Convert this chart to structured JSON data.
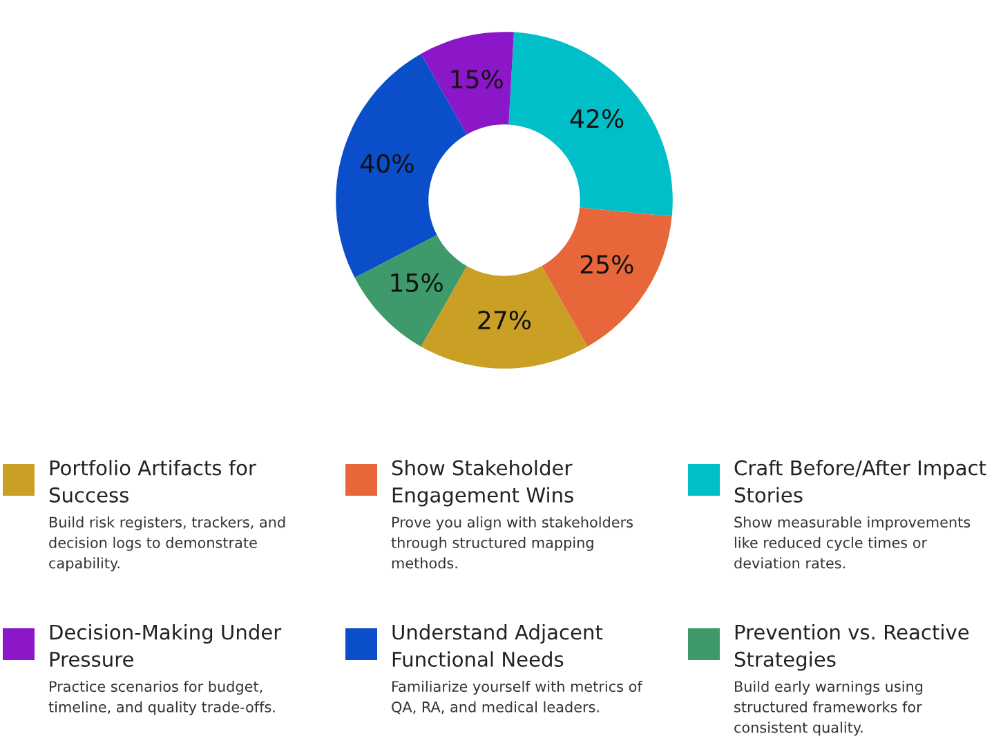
{
  "chart_data": {
    "type": "donut",
    "categories": [
      "Portfolio Artifacts for Success",
      "Show Stakeholder Engagement Wins",
      "Craft Before/After Impact Stories",
      "Decision-Making Under Pressure",
      "Understand Adjacent Functional Needs",
      "Prevention vs. Reactive Strategies"
    ],
    "values": [
      27,
      25,
      42,
      15,
      40,
      15
    ],
    "value_labels": [
      "27%",
      "25%",
      "42%",
      "15%",
      "40%",
      "15%"
    ],
    "colors": [
      "#c9a024",
      "#e8673a",
      "#00bfc9",
      "#8c17c9",
      "#0a4fc9",
      "#3e9a6a"
    ],
    "annotations": [
      "Build risk registers, trackers, and decision logs to demonstrate capability.",
      "Prove you align with stakeholders through structured mapping methods.",
      "Show measurable improvements like reduced cycle times or deviation rates.",
      "Practice scenarios for budget, timeline, and quality trade-offs.",
      "Familiarize yourself with metrics of QA, RA, and medical leaders.",
      "Build early warnings using structured frameworks for consistent quality."
    ],
    "legend": "bottom"
  }
}
